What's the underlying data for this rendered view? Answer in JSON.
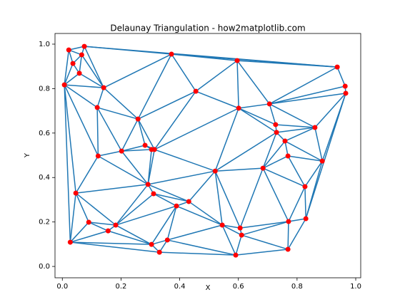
{
  "chart_data": {
    "type": "delaunay",
    "title": "Delaunay Triangulation - how2matplotlib.com",
    "xlabel": "X",
    "ylabel": "Y",
    "x": [
      0.022,
      0.075,
      0.066,
      0.036,
      0.058,
      0.007,
      0.141,
      0.372,
      0.596,
      0.937,
      0.964,
      0.966,
      0.455,
      0.706,
      0.601,
      0.119,
      0.258,
      0.861,
      0.727,
      0.73,
      0.759,
      0.282,
      0.304,
      0.314,
      0.202,
      0.122,
      0.769,
      0.886,
      0.521,
      0.684,
      0.292,
      0.827,
      0.046,
      0.311,
      0.431,
      0.389,
      0.09,
      0.182,
      0.156,
      0.545,
      0.606,
      0.611,
      0.771,
      0.83,
      0.358,
      0.304,
      0.331,
      0.027,
      0.591,
      0.769
    ],
    "y": [
      0.974,
      0.99,
      0.952,
      0.913,
      0.869,
      0.817,
      0.804,
      0.955,
      0.926,
      0.897,
      0.811,
      0.779,
      0.788,
      0.731,
      0.712,
      0.715,
      0.663,
      0.625,
      0.638,
      0.603,
      0.564,
      0.545,
      0.526,
      0.526,
      0.519,
      0.497,
      0.497,
      0.474,
      0.429,
      0.442,
      0.369,
      0.359,
      0.33,
      0.327,
      0.292,
      0.272,
      0.199,
      0.186,
      0.16,
      0.186,
      0.173,
      0.141,
      0.202,
      0.215,
      0.119,
      0.099,
      0.064,
      0.109,
      0.051,
      0.077
    ],
    "xlim": [
      -0.025,
      1.017
    ],
    "ylim": [
      -0.051,
      1.048
    ],
    "xticks": [
      {
        "value": 0,
        "label": "0.0"
      },
      {
        "value": 0.2,
        "label": "0.2"
      },
      {
        "value": 0.4,
        "label": "0.4"
      },
      {
        "value": 0.6,
        "label": "0.6"
      },
      {
        "value": 0.8,
        "label": "0.8"
      },
      {
        "value": 1,
        "label": "1.0"
      }
    ],
    "yticks": [
      {
        "value": 0,
        "label": "0.0"
      },
      {
        "value": 0.2,
        "label": "0.2"
      },
      {
        "value": 0.4,
        "label": "0.4"
      },
      {
        "value": 0.6,
        "label": "0.6"
      },
      {
        "value": 0.8,
        "label": "0.8"
      },
      {
        "value": 1,
        "label": "1.0"
      }
    ],
    "edge_color": "#1f77b4",
    "point_color": "#ff0000"
  }
}
